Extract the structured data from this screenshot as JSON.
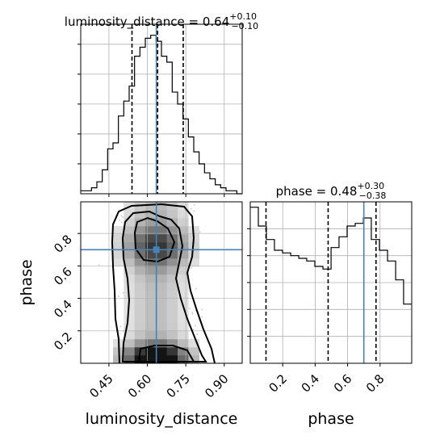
{
  "chart_data": [
    {
      "type": "histogram",
      "panel": "luminosity_distance marginal",
      "title": {
        "prefix": "luminosity_distance = 0.64",
        "sup": "+0.10",
        "sub": "−0.10"
      },
      "xlim": [
        0.34,
        0.97
      ],
      "x_bin_edges": [
        0.34,
        0.361,
        0.382,
        0.403,
        0.424,
        0.445,
        0.466,
        0.487,
        0.508,
        0.529,
        0.55,
        0.571,
        0.592,
        0.613,
        0.634,
        0.655,
        0.676,
        0.697,
        0.718,
        0.739,
        0.76,
        0.781,
        0.802,
        0.823,
        0.844,
        0.865,
        0.886,
        0.907,
        0.928,
        0.949,
        0.97
      ],
      "counts": [
        1,
        1,
        2,
        4,
        8,
        15,
        17,
        26,
        31,
        36,
        46,
        49,
        52,
        53,
        51,
        46,
        44,
        34,
        30,
        25,
        19,
        14,
        10,
        7,
        5,
        3,
        2,
        1,
        1,
        0
      ],
      "quantile_lines": [
        0.54,
        0.64,
        0.74
      ],
      "truth_line": 0.635,
      "colors": {
        "step": "#000000",
        "quantile": "#000000",
        "truth": "#4682b4",
        "grid": "#b0b0b0"
      }
    },
    {
      "type": "histogram",
      "panel": "phase marginal",
      "title": {
        "prefix": "phase = 0.48",
        "sup": "+0.30",
        "sub": "−0.38"
      },
      "xlim": [
        0.0,
        0.995
      ],
      "x_bin_edges": [
        0.0,
        0.0498,
        0.0995,
        0.149,
        0.199,
        0.249,
        0.299,
        0.348,
        0.398,
        0.448,
        0.498,
        0.547,
        0.597,
        0.647,
        0.697,
        0.746,
        0.796,
        0.846,
        0.896,
        0.945,
        0.995
      ],
      "counts": [
        58,
        51,
        46,
        42,
        41,
        40,
        39,
        38,
        36,
        35,
        43,
        47,
        51,
        52,
        54,
        46,
        42,
        38,
        31,
        22
      ],
      "ylim": [
        0,
        60
      ],
      "quantile_lines": [
        0.097,
        0.48,
        0.775
      ],
      "truth_line": 0.7,
      "colors": {
        "step": "#000000",
        "quantile": "#000000",
        "truth": "#4682b4",
        "grid": "#b0b0b0"
      }
    },
    {
      "type": "heatmap",
      "panel": "2D posterior (luminosity_distance vs phase)",
      "xlim": [
        0.34,
        0.97
      ],
      "ylim": [
        0.0,
        0.995
      ],
      "contour_levels": [
        "inner",
        "middle",
        "outer"
      ],
      "truth_point": {
        "x": 0.635,
        "y": 0.7
      },
      "colors": {
        "density_low": "#ffffff",
        "density_high": "#000000",
        "contour": "#000000",
        "scatter": "#9a9a9a",
        "truth": "#4682b4"
      }
    }
  ],
  "axes": {
    "xlabel": "luminosity_distance",
    "ylabel": "phase",
    "xlabel_right": "phase",
    "x_ticks": [
      "0.45",
      "0.60",
      "0.75",
      "0.90"
    ],
    "x_tick_values": [
      0.45,
      0.6,
      0.75,
      0.9
    ],
    "y_ticks": [
      "0.2",
      "0.4",
      "0.6",
      "0.8"
    ],
    "y_tick_values": [
      0.2,
      0.4,
      0.6,
      0.8
    ],
    "phase_x_ticks": [
      "0.2",
      "0.4",
      "0.6",
      "0.8"
    ],
    "phase_x_tick_values": [
      0.2,
      0.4,
      0.6,
      0.8
    ]
  }
}
